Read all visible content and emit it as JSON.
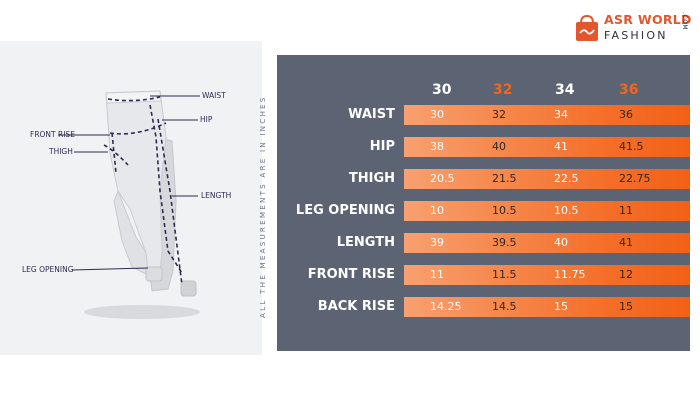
{
  "brand": {
    "line1": "ASR WORLD",
    "line2": "FASHION",
    "suffix": ".COM",
    "accent": "#e4572e"
  },
  "diagram": {
    "callouts": {
      "waist": "WAIST",
      "hip": "HIP",
      "front_rise": "FRONT RISE",
      "thigh": "THIGH",
      "length": "LENGTH",
      "leg_opening": "LEG OPENING"
    }
  },
  "side_note": "ALL THE MEASUREMENTS ARE IN INCHES",
  "size_table": {
    "sizes": [
      "30",
      "32",
      "34",
      "36"
    ],
    "rows": [
      {
        "label": "WAIST",
        "values": [
          "30",
          "32",
          "34",
          "36"
        ]
      },
      {
        "label": "HIP",
        "values": [
          "38",
          "40",
          "41",
          "41.5"
        ]
      },
      {
        "label": "THIGH",
        "values": [
          "20.5",
          "21.5",
          "22.5",
          "22.75"
        ]
      },
      {
        "label": "LEG OPENING",
        "values": [
          "10",
          "10.5",
          "10.5",
          "11"
        ]
      },
      {
        "label": "LENGTH",
        "values": [
          "39",
          "39.5",
          "40",
          "41"
        ]
      },
      {
        "label": "FRONT RISE",
        "values": [
          "11",
          "11.5",
          "11.75",
          "12"
        ]
      },
      {
        "label": "BACK RISE",
        "values": [
          "14.25",
          "14.5",
          "15",
          "15"
        ]
      }
    ],
    "colors": {
      "panel": "#5c6373",
      "accent": "#f26522"
    }
  }
}
